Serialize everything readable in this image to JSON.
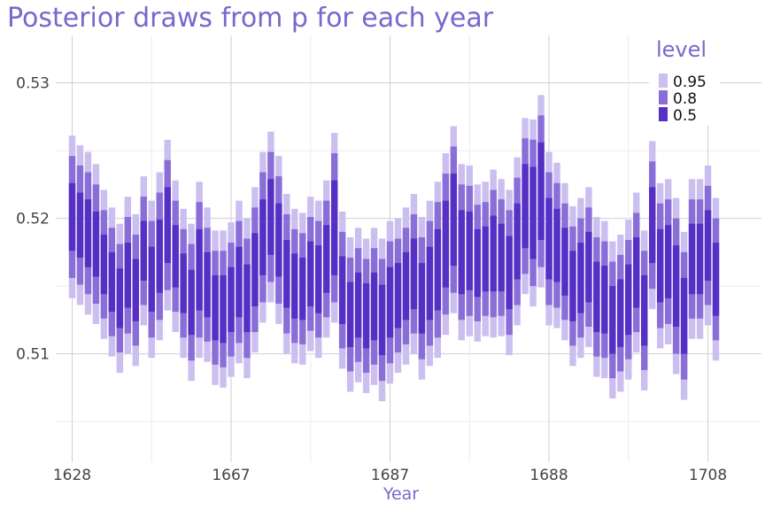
{
  "chart_data": {
    "type": "bar",
    "title": "Posterior draws from p for each year",
    "xlabel": "Year",
    "ylabel": "",
    "ylim": [
      0.502,
      0.5335
    ],
    "yticks": [
      "0.51",
      "0.52",
      "0.53"
    ],
    "ytick_values": [
      0.51,
      0.52,
      0.53
    ],
    "xticks": [
      "1628",
      "1667",
      "1687",
      "1688",
      "1708"
    ],
    "grid": true,
    "legend": {
      "title": "level",
      "position": "top-right",
      "entries": [
        "0.95",
        "0.8",
        "0.5"
      ]
    },
    "colors": {
      "0.95": "#cbbff0",
      "0.8": "#8a6ed8",
      "0.5": "#5630c4"
    },
    "intervals_description": "one interval bar per year index (1..82); values in p units",
    "medians": [
      0.5201,
      0.5195,
      0.5189,
      0.5181,
      0.5166,
      0.5153,
      0.5141,
      0.5158,
      0.5147,
      0.5176,
      0.5155,
      0.5172,
      0.5195,
      0.5172,
      0.5152,
      0.5138,
      0.5162,
      0.5151,
      0.5134,
      0.5133,
      0.514,
      0.5153,
      0.5141,
      0.5162,
      0.5186,
      0.5201,
      0.5184,
      0.5159,
      0.515,
      0.5148,
      0.5159,
      0.5155,
      0.517,
      0.5193,
      0.5147,
      0.5129,
      0.5136,
      0.5128,
      0.5135,
      0.5125,
      0.5138,
      0.5143,
      0.515,
      0.5159,
      0.5141,
      0.5152,
      0.5162,
      0.5181,
      0.5199,
      0.5175,
      0.5176,
      0.5167,
      0.517,
      0.5174,
      0.5171,
      0.516,
      0.5183,
      0.5209,
      0.5204,
      0.522,
      0.5185,
      0.518,
      0.5168,
      0.515,
      0.5156,
      0.5164,
      0.5142,
      0.514,
      0.5125,
      0.513,
      0.514,
      0.516,
      0.5132,
      0.5195,
      0.5165,
      0.5168,
      0.515,
      0.5128,
      0.517,
      0.517,
      0.518,
      0.5155
    ],
    "half_width_50": [
      0.0025,
      0.0024,
      0.0025,
      0.0024,
      0.0022,
      0.0022,
      0.0022,
      0.0024,
      0.0023,
      0.0022,
      0.0024,
      0.0027,
      0.0028,
      0.0023,
      0.0022,
      0.0024,
      0.003,
      0.0024,
      0.0024,
      0.0025,
      0.0024,
      0.0026,
      0.0025,
      0.0027,
      0.0028,
      0.0028,
      0.0027,
      0.0025,
      0.0024,
      0.0023,
      0.0024,
      0.0025,
      0.0025,
      0.0035,
      0.0025,
      0.0024,
      0.0024,
      0.0024,
      0.0025,
      0.0026,
      0.0026,
      0.0024,
      0.0025,
      0.0026,
      0.0026,
      0.0027,
      0.003,
      0.0032,
      0.0034,
      0.0031,
      0.0029,
      0.0025,
      0.0024,
      0.0028,
      0.0025,
      0.0027,
      0.0028,
      0.0031,
      0.0034,
      0.0036,
      0.003,
      0.0027,
      0.0025,
      0.0026,
      0.0026,
      0.0026,
      0.0026,
      0.0025,
      0.0025,
      0.0025,
      0.0026,
      0.0026,
      0.0026,
      0.0028,
      0.0027,
      0.0027,
      0.003,
      0.0028,
      0.0026,
      0.0026,
      0.0026,
      0.0027
    ],
    "half_width_80": [
      0.0045,
      0.0044,
      0.0045,
      0.0044,
      0.004,
      0.004,
      0.004,
      0.0043,
      0.0041,
      0.004,
      0.0043,
      0.0047,
      0.0048,
      0.0041,
      0.004,
      0.0043,
      0.005,
      0.0042,
      0.0042,
      0.0043,
      0.0042,
      0.0045,
      0.0044,
      0.0046,
      0.0048,
      0.0048,
      0.0047,
      0.0044,
      0.0042,
      0.0041,
      0.0042,
      0.0043,
      0.0043,
      0.0055,
      0.0043,
      0.0042,
      0.0042,
      0.0042,
      0.0043,
      0.0045,
      0.0045,
      0.0042,
      0.0043,
      0.0044,
      0.0045,
      0.0046,
      0.005,
      0.0052,
      0.0054,
      0.005,
      0.0048,
      0.0043,
      0.0042,
      0.0047,
      0.0043,
      0.0046,
      0.0047,
      0.005,
      0.0054,
      0.0056,
      0.0049,
      0.0046,
      0.0043,
      0.0044,
      0.0044,
      0.0044,
      0.0044,
      0.0043,
      0.0043,
      0.0043,
      0.0044,
      0.0044,
      0.0044,
      0.0047,
      0.0046,
      0.0046,
      0.005,
      0.0047,
      0.0044,
      0.0044,
      0.0044,
      0.0045
    ],
    "half_width_95": [
      0.006,
      0.0059,
      0.006,
      0.0059,
      0.0055,
      0.0055,
      0.0055,
      0.0058,
      0.0056,
      0.0055,
      0.0058,
      0.0062,
      0.0063,
      0.0056,
      0.0055,
      0.0058,
      0.0065,
      0.0057,
      0.0057,
      0.0058,
      0.0057,
      0.006,
      0.0059,
      0.0061,
      0.0063,
      0.0063,
      0.0062,
      0.0059,
      0.0057,
      0.0056,
      0.0057,
      0.0058,
      0.0058,
      0.007,
      0.0058,
      0.0057,
      0.0057,
      0.0057,
      0.0058,
      0.006,
      0.006,
      0.0057,
      0.0058,
      0.0059,
      0.006,
      0.0061,
      0.0065,
      0.0067,
      0.0069,
      0.0065,
      0.0063,
      0.0058,
      0.0057,
      0.0062,
      0.0058,
      0.0061,
      0.0062,
      0.0065,
      0.0069,
      0.0071,
      0.0064,
      0.0061,
      0.0058,
      0.0059,
      0.0059,
      0.0059,
      0.0059,
      0.0058,
      0.0058,
      0.0058,
      0.0059,
      0.0059,
      0.0059,
      0.0062,
      0.0061,
      0.0061,
      0.0065,
      0.0062,
      0.0059,
      0.0059,
      0.0059,
      0.006
    ]
  }
}
